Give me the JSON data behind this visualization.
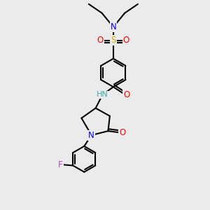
{
  "bg_color": "#ebebeb",
  "bond_color": "#000000",
  "bond_width": 1.5,
  "atom_colors": {
    "N": "#0000ff",
    "O": "#ff0000",
    "S": "#ccaa00",
    "F": "#bb44bb",
    "H": "#44aaaa",
    "C": "#000000"
  },
  "font_size": 8.5,
  "fig_width": 3.0,
  "fig_height": 3.0,
  "xlim": [
    0,
    10
  ],
  "ylim": [
    0,
    10
  ]
}
